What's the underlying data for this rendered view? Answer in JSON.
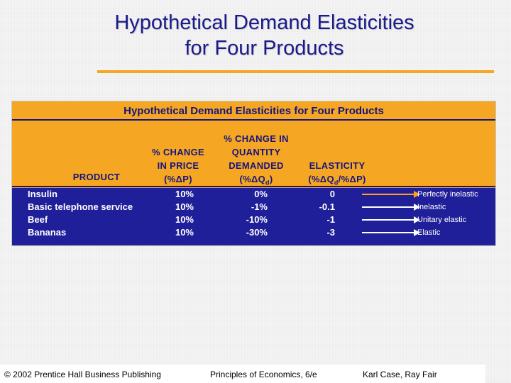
{
  "slide": {
    "title_line1": "Hypothetical Demand Elasticities",
    "title_line2": "for Four Products"
  },
  "table": {
    "title": "Hypothetical Demand Elasticities for Four Products",
    "headers": {
      "product": "PRODUCT",
      "price_line1": "% CHANGE",
      "price_line2": "IN PRICE",
      "price_line3": "(%ΔP)",
      "qty_line1": "% CHANGE IN",
      "qty_line2": "QUANTITY",
      "qty_line3": "DEMANDED",
      "qty_line4_pre": "(%ΔQ",
      "qty_line4_sub": "d",
      "qty_line4_post": ")",
      "elas_line1": "ELASTICITY",
      "elas_line2_pre": "(%ΔQ",
      "elas_line2_sub": "d",
      "elas_line2_post": "/%ΔP)"
    },
    "rows": [
      {
        "product": "Insulin",
        "price_change": "10%",
        "quantity_change": "0%",
        "elasticity": "0",
        "label": "Perfectly inelastic"
      },
      {
        "product": "Basic telephone service",
        "price_change": "10%",
        "quantity_change": "-1%",
        "elasticity": "-0.1",
        "label": "Inelastic"
      },
      {
        "product": "Beef",
        "price_change": "10%",
        "quantity_change": "-10%",
        "elasticity": "-1",
        "label": "Unitary elastic"
      },
      {
        "product": "Bananas",
        "price_change": "10%",
        "quantity_change": "-30%",
        "elasticity": "-3",
        "label": "Elastic"
      }
    ]
  },
  "footer": {
    "copyright": "© 2002 Prentice Hall Business Publishing",
    "book": "Principles of Economics, 6/e",
    "authors": "Karl Case, Ray Fair"
  },
  "colors": {
    "title_blue": "#1a1a8c",
    "accent_orange": "#f5a623",
    "band_navy": "#1f1f99"
  }
}
